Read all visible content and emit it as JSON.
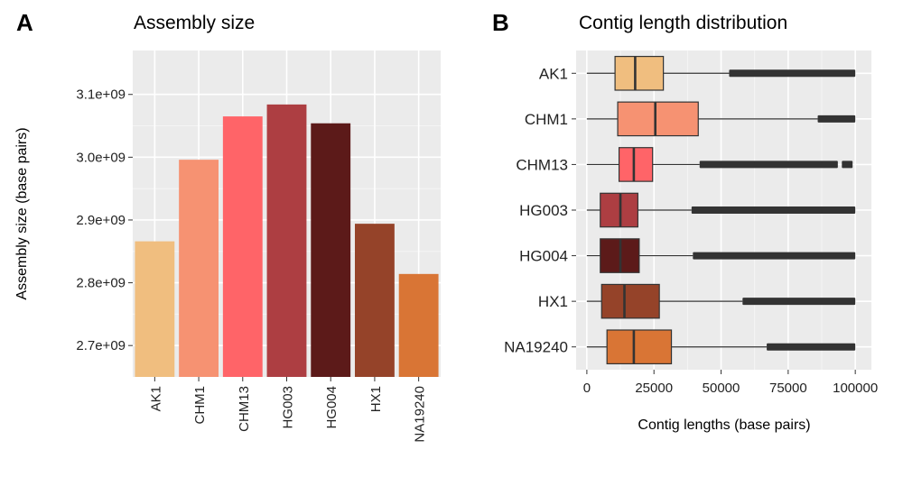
{
  "panel_a": {
    "letter": "A",
    "chart_data": {
      "type": "bar",
      "title": "Assembly size",
      "xlabel": "",
      "ylabel": "Assembly size (base pairs)",
      "categories": [
        "AK1",
        "CHM1",
        "CHM13",
        "HG003",
        "HG004",
        "HX1",
        "NA19240"
      ],
      "values": [
        2866000000,
        2996000000,
        3065000000,
        3084000000,
        3054000000,
        2894000000,
        2814000000
      ],
      "colors": [
        "#F0BE7F",
        "#F69272",
        "#FF6468",
        "#AD3E42",
        "#5C1A19",
        "#954329",
        "#D97535"
      ],
      "ylim": [
        2650000000,
        3170000000
      ],
      "yticks": [
        2700000000,
        2800000000,
        2900000000,
        3000000000,
        3100000000
      ],
      "ytick_labels": [
        "2.7e+09",
        "2.8e+09",
        "2.9e+09",
        "3.0e+09",
        "3.1e+09"
      ],
      "grid": true
    }
  },
  "panel_b": {
    "letter": "B",
    "chart_data": {
      "type": "boxplot",
      "title": "Contig length distribution",
      "xlabel": "Contig lengths (base pairs)",
      "ylabel": "",
      "categories": [
        "AK1",
        "CHM1",
        "CHM13",
        "HG003",
        "HG004",
        "HX1",
        "NA19240"
      ],
      "colors": [
        "#F0BE7F",
        "#F69272",
        "#FF6468",
        "#AD3E42",
        "#5C1A19",
        "#954329",
        "#D97535"
      ],
      "boxes": [
        {
          "min": 0,
          "q1": 10500,
          "median": 18000,
          "q3": 28500,
          "whisker_max": 53000,
          "outliers": [
            [
              53000,
              100000
            ]
          ]
        },
        {
          "min": 0,
          "q1": 11500,
          "median": 25500,
          "q3": 41500,
          "whisker_max": 86000,
          "outliers": [
            [
              86000,
              100000
            ]
          ]
        },
        {
          "min": 0,
          "q1": 12000,
          "median": 17500,
          "q3": 24500,
          "whisker_max": 42000,
          "outliers": [
            [
              42000,
              93500
            ],
            [
              95000,
              99000
            ]
          ]
        },
        {
          "min": 0,
          "q1": 5000,
          "median": 12500,
          "q3": 19000,
          "whisker_max": 39000,
          "outliers": [
            [
              39000,
              100000
            ]
          ]
        },
        {
          "min": 0,
          "q1": 5000,
          "median": 12500,
          "q3": 19500,
          "whisker_max": 39500,
          "outliers": [
            [
              39500,
              100000
            ]
          ]
        },
        {
          "min": 0,
          "q1": 5500,
          "median": 14000,
          "q3": 27000,
          "whisker_max": 58000,
          "outliers": [
            [
              58000,
              100000
            ]
          ]
        },
        {
          "min": 0,
          "q1": 7500,
          "median": 17500,
          "q3": 31500,
          "whisker_max": 67000,
          "outliers": [
            [
              67000,
              100000
            ]
          ]
        }
      ],
      "xlim": [
        -4000,
        106000
      ],
      "xticks": [
        0,
        25000,
        50000,
        75000,
        100000
      ],
      "xtick_labels": [
        "0",
        "25000",
        "50000",
        "75000",
        "100000"
      ],
      "grid": true
    }
  }
}
